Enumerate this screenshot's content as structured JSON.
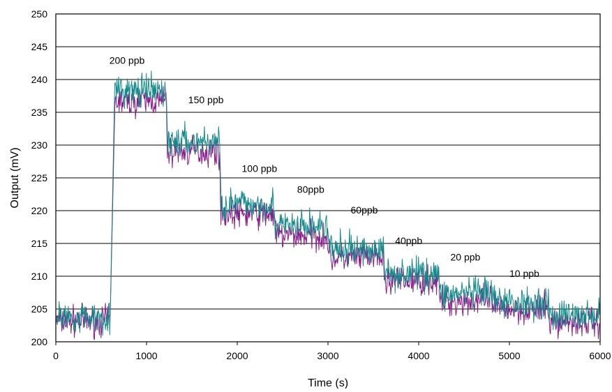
{
  "chart_data": {
    "type": "line",
    "title": "",
    "xlabel": "Time (s)",
    "ylabel": "Output (mV)",
    "xlim": [
      0,
      6000
    ],
    "ylim": [
      200,
      250
    ],
    "xticks": [
      0,
      1000,
      2000,
      3000,
      4000,
      5000,
      6000
    ],
    "xtick_labels": [
      "0",
      "1000",
      "2000",
      "3000",
      "4000",
      "5000",
      "6000"
    ],
    "yticks": [
      200,
      205,
      210,
      215,
      220,
      225,
      230,
      235,
      240,
      245,
      250
    ],
    "ytick_labels": [
      "200",
      "205",
      "210",
      "215",
      "220",
      "225",
      "230",
      "235",
      "240",
      "245",
      "250"
    ],
    "grid": "horizontal",
    "legend": "none",
    "colors": {
      "series_a": "#8B1A8B",
      "series_b": "#138A8A",
      "grid": "#000000",
      "frame": "#000000"
    },
    "series": [
      {
        "segments": [
          {
            "x0": 0,
            "x1": 600,
            "y": 203.2
          },
          {
            "x0": 650,
            "x1": 1220,
            "y": 236.7
          },
          {
            "x0": 1230,
            "x1": 1810,
            "y": 229.0
          },
          {
            "x0": 1820,
            "x1": 2410,
            "y": 219.5
          },
          {
            "x0": 2420,
            "x1": 3000,
            "y": 216.2
          },
          {
            "x0": 3010,
            "x1": 3610,
            "y": 212.8
          },
          {
            "x0": 3620,
            "x1": 4220,
            "y": 209.3
          },
          {
            "x0": 4230,
            "x1": 4820,
            "y": 206.2
          },
          {
            "x0": 4830,
            "x1": 5430,
            "y": 205.0
          },
          {
            "x0": 5440,
            "x1": 6000,
            "y": 203.0
          }
        ]
      },
      {
        "segments": [
          {
            "x0": 0,
            "x1": 600,
            "y": 203.8
          },
          {
            "x0": 650,
            "x1": 1220,
            "y": 238.2
          },
          {
            "x0": 1230,
            "x1": 1810,
            "y": 230.5
          },
          {
            "x0": 1820,
            "x1": 2410,
            "y": 221.0
          },
          {
            "x0": 2420,
            "x1": 3000,
            "y": 217.6
          },
          {
            "x0": 3010,
            "x1": 3610,
            "y": 214.0
          },
          {
            "x0": 3620,
            "x1": 4220,
            "y": 210.5
          },
          {
            "x0": 4230,
            "x1": 4820,
            "y": 207.3
          },
          {
            "x0": 4830,
            "x1": 5430,
            "y": 206.0
          },
          {
            "x0": 5440,
            "x1": 6000,
            "y": 204.0
          }
        ]
      }
    ],
    "annotations": [
      {
        "text": "200 ppb",
        "x": 590,
        "y": 242.4
      },
      {
        "text": "150 ppb",
        "x": 1460,
        "y": 236.4
      },
      {
        "text": "100 ppb",
        "x": 2050,
        "y": 225.9
      },
      {
        "text": "80ppb",
        "x": 2660,
        "y": 222.7
      },
      {
        "text": "60ppb",
        "x": 3250,
        "y": 219.6
      },
      {
        "text": "40ppb",
        "x": 3740,
        "y": 214.9
      },
      {
        "text": "20 ppb",
        "x": 4350,
        "y": 212.4
      },
      {
        "text": "10 ppb",
        "x": 5000,
        "y": 209.9
      }
    ]
  }
}
